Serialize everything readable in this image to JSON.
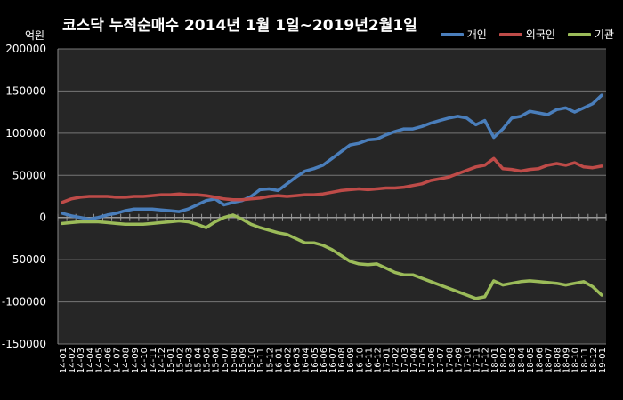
{
  "chart_data": {
    "type": "line",
    "title": "코스닥 누적순매수 2014년 1월 1일~2019년2월1일",
    "unit_label": "억원",
    "ylim": [
      -150000,
      200000
    ],
    "yticks": [
      -150000,
      -100000,
      -50000,
      0,
      50000,
      100000,
      150000,
      200000
    ],
    "grid": true,
    "legend_position": "top-right",
    "x": [
      "14-01",
      "14-02",
      "14-03",
      "14-04",
      "14-05",
      "14-06",
      "14-07",
      "14-08",
      "14-09",
      "14-10",
      "14-11",
      "14-12",
      "15-01",
      "15-02",
      "15-03",
      "15-04",
      "15-05",
      "15-06",
      "15-07",
      "15-08",
      "15-09",
      "15-10",
      "15-11",
      "15-12",
      "16-01",
      "16-02",
      "16-03",
      "16-04",
      "16-05",
      "16-06",
      "16-07",
      "16-08",
      "16-09",
      "16-10",
      "16-11",
      "16-12",
      "17-01",
      "17-02",
      "17-03",
      "17-04",
      "17-05",
      "17-06",
      "17-07",
      "17-08",
      "17-09",
      "17-10",
      "17-11",
      "17-12",
      "18-01",
      "18-02",
      "18-03",
      "18-04",
      "18-05",
      "18-06",
      "18-07",
      "18-08",
      "18-09",
      "18-10",
      "18-11",
      "18-12",
      "19-01"
    ],
    "series": [
      {
        "name": "개인",
        "color": "#4a7ebb",
        "values": [
          5000,
          2000,
          0,
          -2000,
          0,
          3000,
          5000,
          8000,
          10000,
          10000,
          10000,
          9000,
          8000,
          7000,
          10000,
          15000,
          20000,
          22000,
          15000,
          18000,
          20000,
          25000,
          33000,
          34000,
          32000,
          40000,
          48000,
          55000,
          58000,
          62000,
          70000,
          78000,
          86000,
          88000,
          92000,
          93000,
          98000,
          102000,
          105000,
          105000,
          108000,
          112000,
          115000,
          118000,
          120000,
          118000,
          110000,
          115000,
          95000,
          105000,
          118000,
          120000,
          126000,
          124000,
          122000,
          128000,
          130000,
          125000,
          130000,
          135000,
          145000
        ]
      },
      {
        "name": "외국인",
        "color": "#be4b48",
        "values": [
          18000,
          22000,
          24000,
          25000,
          25000,
          25000,
          24000,
          24000,
          25000,
          25000,
          26000,
          27000,
          27000,
          28000,
          27000,
          27000,
          26000,
          24000,
          22000,
          21000,
          21000,
          22000,
          23000,
          25000,
          26000,
          25000,
          26000,
          27000,
          27000,
          28000,
          30000,
          32000,
          33000,
          34000,
          33000,
          34000,
          35000,
          35000,
          36000,
          38000,
          40000,
          44000,
          46000,
          48000,
          52000,
          56000,
          60000,
          62000,
          70000,
          58000,
          57000,
          55000,
          57000,
          58000,
          62000,
          64000,
          62000,
          65000,
          60000,
          59000,
          61000
        ]
      },
      {
        "name": "기관",
        "color": "#9bbb59",
        "values": [
          -7000,
          -6000,
          -5000,
          -5000,
          -5000,
          -6000,
          -7000,
          -8000,
          -8000,
          -8000,
          -7000,
          -6000,
          -5000,
          -4000,
          -5000,
          -8000,
          -12000,
          -5000,
          0,
          3000,
          -2000,
          -8000,
          -12000,
          -15000,
          -18000,
          -20000,
          -25000,
          -30000,
          -30000,
          -33000,
          -38000,
          -45000,
          -52000,
          -55000,
          -56000,
          -55000,
          -60000,
          -65000,
          -68000,
          -68000,
          -72000,
          -76000,
          -80000,
          -84000,
          -88000,
          -92000,
          -96000,
          -94000,
          -75000,
          -80000,
          -78000,
          -76000,
          -75000,
          -76000,
          -77000,
          -78000,
          -80000,
          -78000,
          -76000,
          -82000,
          -92000
        ]
      }
    ]
  }
}
